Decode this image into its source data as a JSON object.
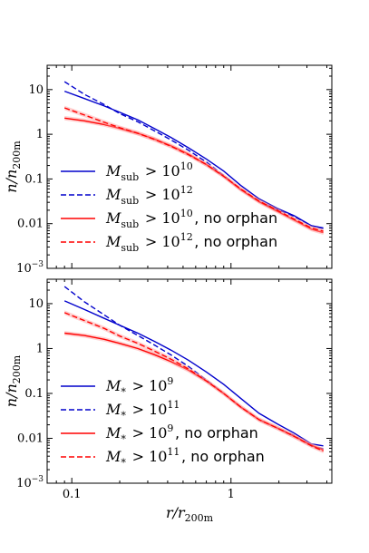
{
  "chart_data": [
    {
      "type": "line",
      "xscale": "log",
      "yscale": "log",
      "xlim": [
        0.07,
        4.3
      ],
      "ylim": [
        0.001,
        35
      ],
      "ylabel": "n/n200m",
      "ytick_labels": [
        "10",
        "1",
        "0.1",
        "0.01",
        "10^-3"
      ],
      "legend_position": "lower-left",
      "series": [
        {
          "name": "M_sub > 10^10",
          "color": "#0000cc",
          "style": "solid",
          "x": [
            0.09,
            0.12,
            0.16,
            0.2,
            0.26,
            0.33,
            0.42,
            0.54,
            0.7,
            0.9,
            1.15,
            1.5,
            1.95,
            2.5,
            3.2,
            3.8
          ],
          "y": [
            9.2,
            6.3,
            4.3,
            3.1,
            2.1,
            1.35,
            0.85,
            0.5,
            0.28,
            0.15,
            0.072,
            0.036,
            0.022,
            0.015,
            0.009,
            0.008
          ]
        },
        {
          "name": "M_sub > 10^12",
          "color": "#0000cc",
          "style": "dashed",
          "x": [
            0.09,
            0.12,
            0.16,
            0.2,
            0.26,
            0.33,
            0.42,
            0.54,
            0.7,
            0.9,
            1.15,
            1.5,
            1.95,
            2.5,
            3.2,
            3.8
          ],
          "y": [
            15,
            7.8,
            4.6,
            2.9,
            1.9,
            1.2,
            0.75,
            0.44,
            0.24,
            0.12,
            0.058,
            0.031,
            0.021,
            0.0145,
            0.009,
            0.0078
          ]
        },
        {
          "name": "M_sub > 10^10, no orphan",
          "color": "#ff0000",
          "style": "solid",
          "x": [
            0.09,
            0.12,
            0.16,
            0.2,
            0.26,
            0.33,
            0.42,
            0.54,
            0.7,
            0.9,
            1.15,
            1.5,
            1.95,
            2.5,
            3.2,
            3.8
          ],
          "y": [
            2.3,
            2.0,
            1.65,
            1.35,
            1.05,
            0.78,
            0.55,
            0.36,
            0.21,
            0.115,
            0.058,
            0.031,
            0.019,
            0.012,
            0.0075,
            0.0063
          ]
        },
        {
          "name": "M_sub > 10^12, no orphan",
          "color": "#ff0000",
          "style": "dashed",
          "x": [
            0.09,
            0.12,
            0.16,
            0.2,
            0.26,
            0.33,
            0.42,
            0.54,
            0.7,
            0.9,
            1.15,
            1.5,
            1.95,
            2.5,
            3.2,
            3.8
          ],
          "y": [
            3.9,
            2.7,
            1.85,
            1.4,
            1.05,
            0.77,
            0.54,
            0.35,
            0.21,
            0.115,
            0.06,
            0.032,
            0.02,
            0.0125,
            0.008,
            0.0068
          ]
        }
      ]
    },
    {
      "type": "line",
      "xscale": "log",
      "yscale": "log",
      "xlim": [
        0.07,
        4.3
      ],
      "ylim": [
        0.001,
        35
      ],
      "xlabel": "r/r200m",
      "ylabel": "n/n200m",
      "xtick_labels": [
        "0.1",
        "1"
      ],
      "ytick_labels": [
        "10",
        "1",
        "0.1",
        "0.01",
        "10^-3"
      ],
      "legend_position": "lower-left",
      "series": [
        {
          "name": "M* > 10^9",
          "color": "#0000cc",
          "style": "solid",
          "x": [
            0.09,
            0.12,
            0.16,
            0.2,
            0.26,
            0.33,
            0.42,
            0.54,
            0.7,
            0.9,
            1.15,
            1.5,
            1.95,
            2.5,
            3.2,
            3.8
          ],
          "y": [
            11.5,
            7.4,
            4.7,
            3.3,
            2.2,
            1.45,
            0.92,
            0.55,
            0.3,
            0.16,
            0.078,
            0.036,
            0.021,
            0.013,
            0.0075,
            0.0068
          ]
        },
        {
          "name": "M* > 10^11",
          "color": "#0000cc",
          "style": "dashed",
          "x": [
            0.09,
            0.12,
            0.16,
            0.2,
            0.26,
            0.33,
            0.42,
            0.54,
            0.7,
            0.9,
            1.15,
            1.5,
            1.95,
            2.5,
            3.2,
            3.8
          ],
          "y": [
            24,
            11,
            5.6,
            3.3,
            1.95,
            1.2,
            0.72,
            0.4,
            0.2,
            0.1,
            0.05,
            0.026,
            0.017,
            0.0115,
            0.0068,
            0.0058
          ]
        },
        {
          "name": "M* > 10^9, no orphan",
          "color": "#ff0000",
          "style": "solid",
          "x": [
            0.09,
            0.12,
            0.16,
            0.2,
            0.26,
            0.33,
            0.42,
            0.54,
            0.7,
            0.9,
            1.15,
            1.5,
            1.95,
            2.5,
            3.2,
            3.8
          ],
          "y": [
            2.2,
            1.95,
            1.6,
            1.3,
            1.0,
            0.73,
            0.51,
            0.33,
            0.19,
            0.1,
            0.05,
            0.026,
            0.017,
            0.011,
            0.007,
            0.0055
          ]
        },
        {
          "name": "M* > 10^11, no orphan",
          "color": "#ff0000",
          "style": "dashed",
          "x": [
            0.09,
            0.12,
            0.16,
            0.2,
            0.26,
            0.33,
            0.42,
            0.54,
            0.7,
            0.9,
            1.15,
            1.5,
            1.95,
            2.5,
            3.2,
            3.8
          ],
          "y": [
            6.3,
            4.2,
            2.8,
            1.9,
            1.3,
            0.88,
            0.58,
            0.35,
            0.19,
            0.1,
            0.05,
            0.026,
            0.017,
            0.011,
            0.0068,
            0.0052
          ]
        }
      ]
    }
  ]
}
